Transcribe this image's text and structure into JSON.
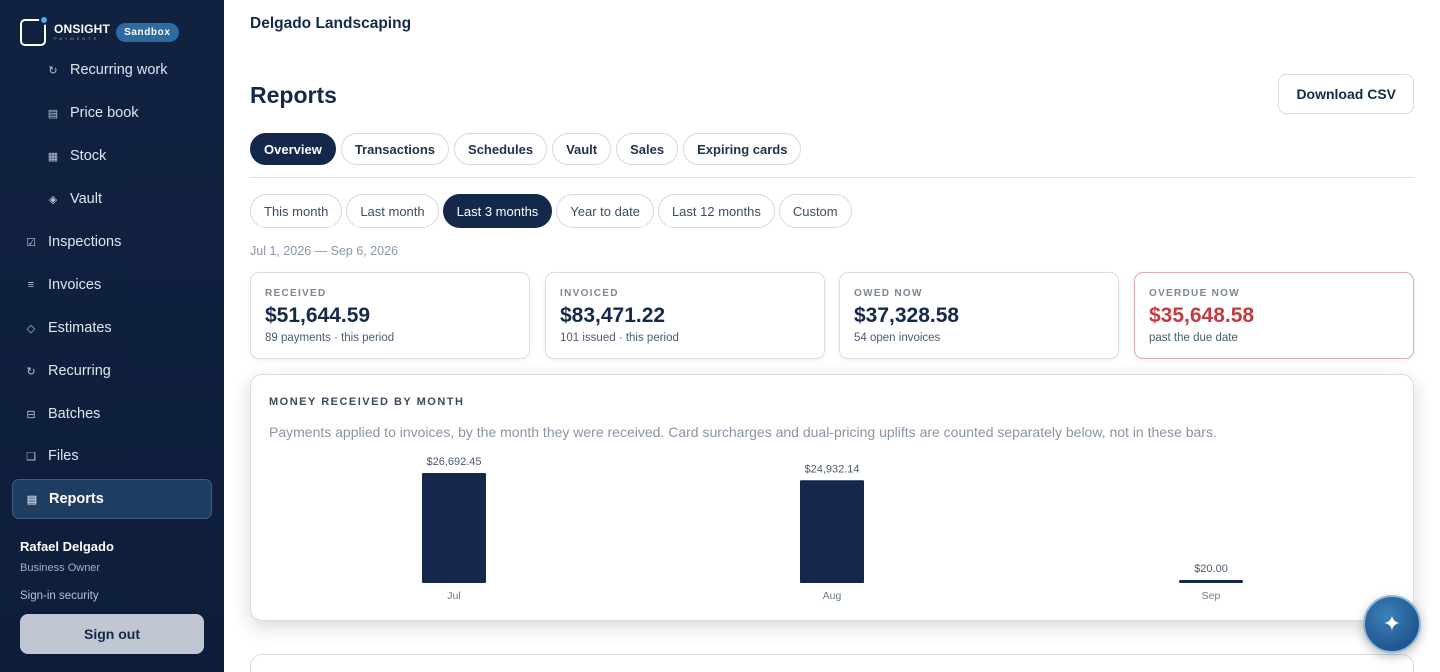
{
  "brand": {
    "name": "ONSIGHT",
    "sub": "PAYMENTS",
    "badge": "Sandbox"
  },
  "sidebar": {
    "sub_items": [
      {
        "label": "Recurring work",
        "icon": "refresh-icon"
      },
      {
        "label": "Price book",
        "icon": "list-icon"
      },
      {
        "label": "Stock",
        "icon": "grid-icon"
      },
      {
        "label": "Vault",
        "icon": "diamond-icon"
      }
    ],
    "items": [
      {
        "label": "Inspections",
        "icon": "checkbox-icon"
      },
      {
        "label": "Invoices",
        "icon": "lines-icon"
      },
      {
        "label": "Estimates",
        "icon": "diamond-outline-icon"
      },
      {
        "label": "Recurring",
        "icon": "refresh-icon"
      },
      {
        "label": "Batches",
        "icon": "batch-icon"
      },
      {
        "label": "Files",
        "icon": "file-icon"
      },
      {
        "label": "Reports",
        "icon": "report-icon",
        "active": true
      }
    ],
    "user": {
      "name": "Rafael Delgado",
      "role": "Business Owner",
      "security": "Sign-in security",
      "sign_out": "Sign out"
    }
  },
  "header": {
    "org": "Delgado Landscaping",
    "title": "Reports",
    "download": "Download CSV"
  },
  "tabs": [
    "Overview",
    "Transactions",
    "Schedules",
    "Vault",
    "Sales",
    "Expiring cards"
  ],
  "active_tab": "Overview",
  "ranges": [
    "This month",
    "Last month",
    "Last 3 months",
    "Year to date",
    "Last 12 months",
    "Custom"
  ],
  "active_range": "Last 3 months",
  "date_range": "Jul 1, 2026 — Sep 6, 2026",
  "stats": [
    {
      "label": "RECEIVED",
      "value": "$51,644.59",
      "sub": "89 payments · this period"
    },
    {
      "label": "INVOICED",
      "value": "$83,471.22",
      "sub": "101 issued · this period"
    },
    {
      "label": "OWED NOW",
      "value": "$37,328.58",
      "sub": "54 open invoices"
    },
    {
      "label": "OVERDUE NOW",
      "value": "$35,648.58",
      "sub": "past the due date"
    }
  ],
  "colors": {
    "navy": "#13284a",
    "overdue": "#c53b3f",
    "accent": "#2c6aa0"
  },
  "chart": {
    "title": "MONEY RECEIVED BY MONTH",
    "description": "Payments applied to invoices, by the month they were received. Card surcharges and dual-pricing uplifts are counted separately below, not in these bars."
  },
  "chart_data": {
    "type": "bar",
    "title": "MONEY RECEIVED BY MONTH",
    "categories": [
      "Jul",
      "Aug",
      "Sep"
    ],
    "values": [
      26692.45,
      24932.14,
      20.0
    ],
    "value_labels": [
      "$26,692.45",
      "$24,932.14",
      "$20.00"
    ],
    "xlabel": "",
    "ylabel": "",
    "grid": false,
    "bar_color": "#13284a"
  },
  "fab": {
    "icon": "sparkle-icon",
    "glyph": "✦"
  }
}
